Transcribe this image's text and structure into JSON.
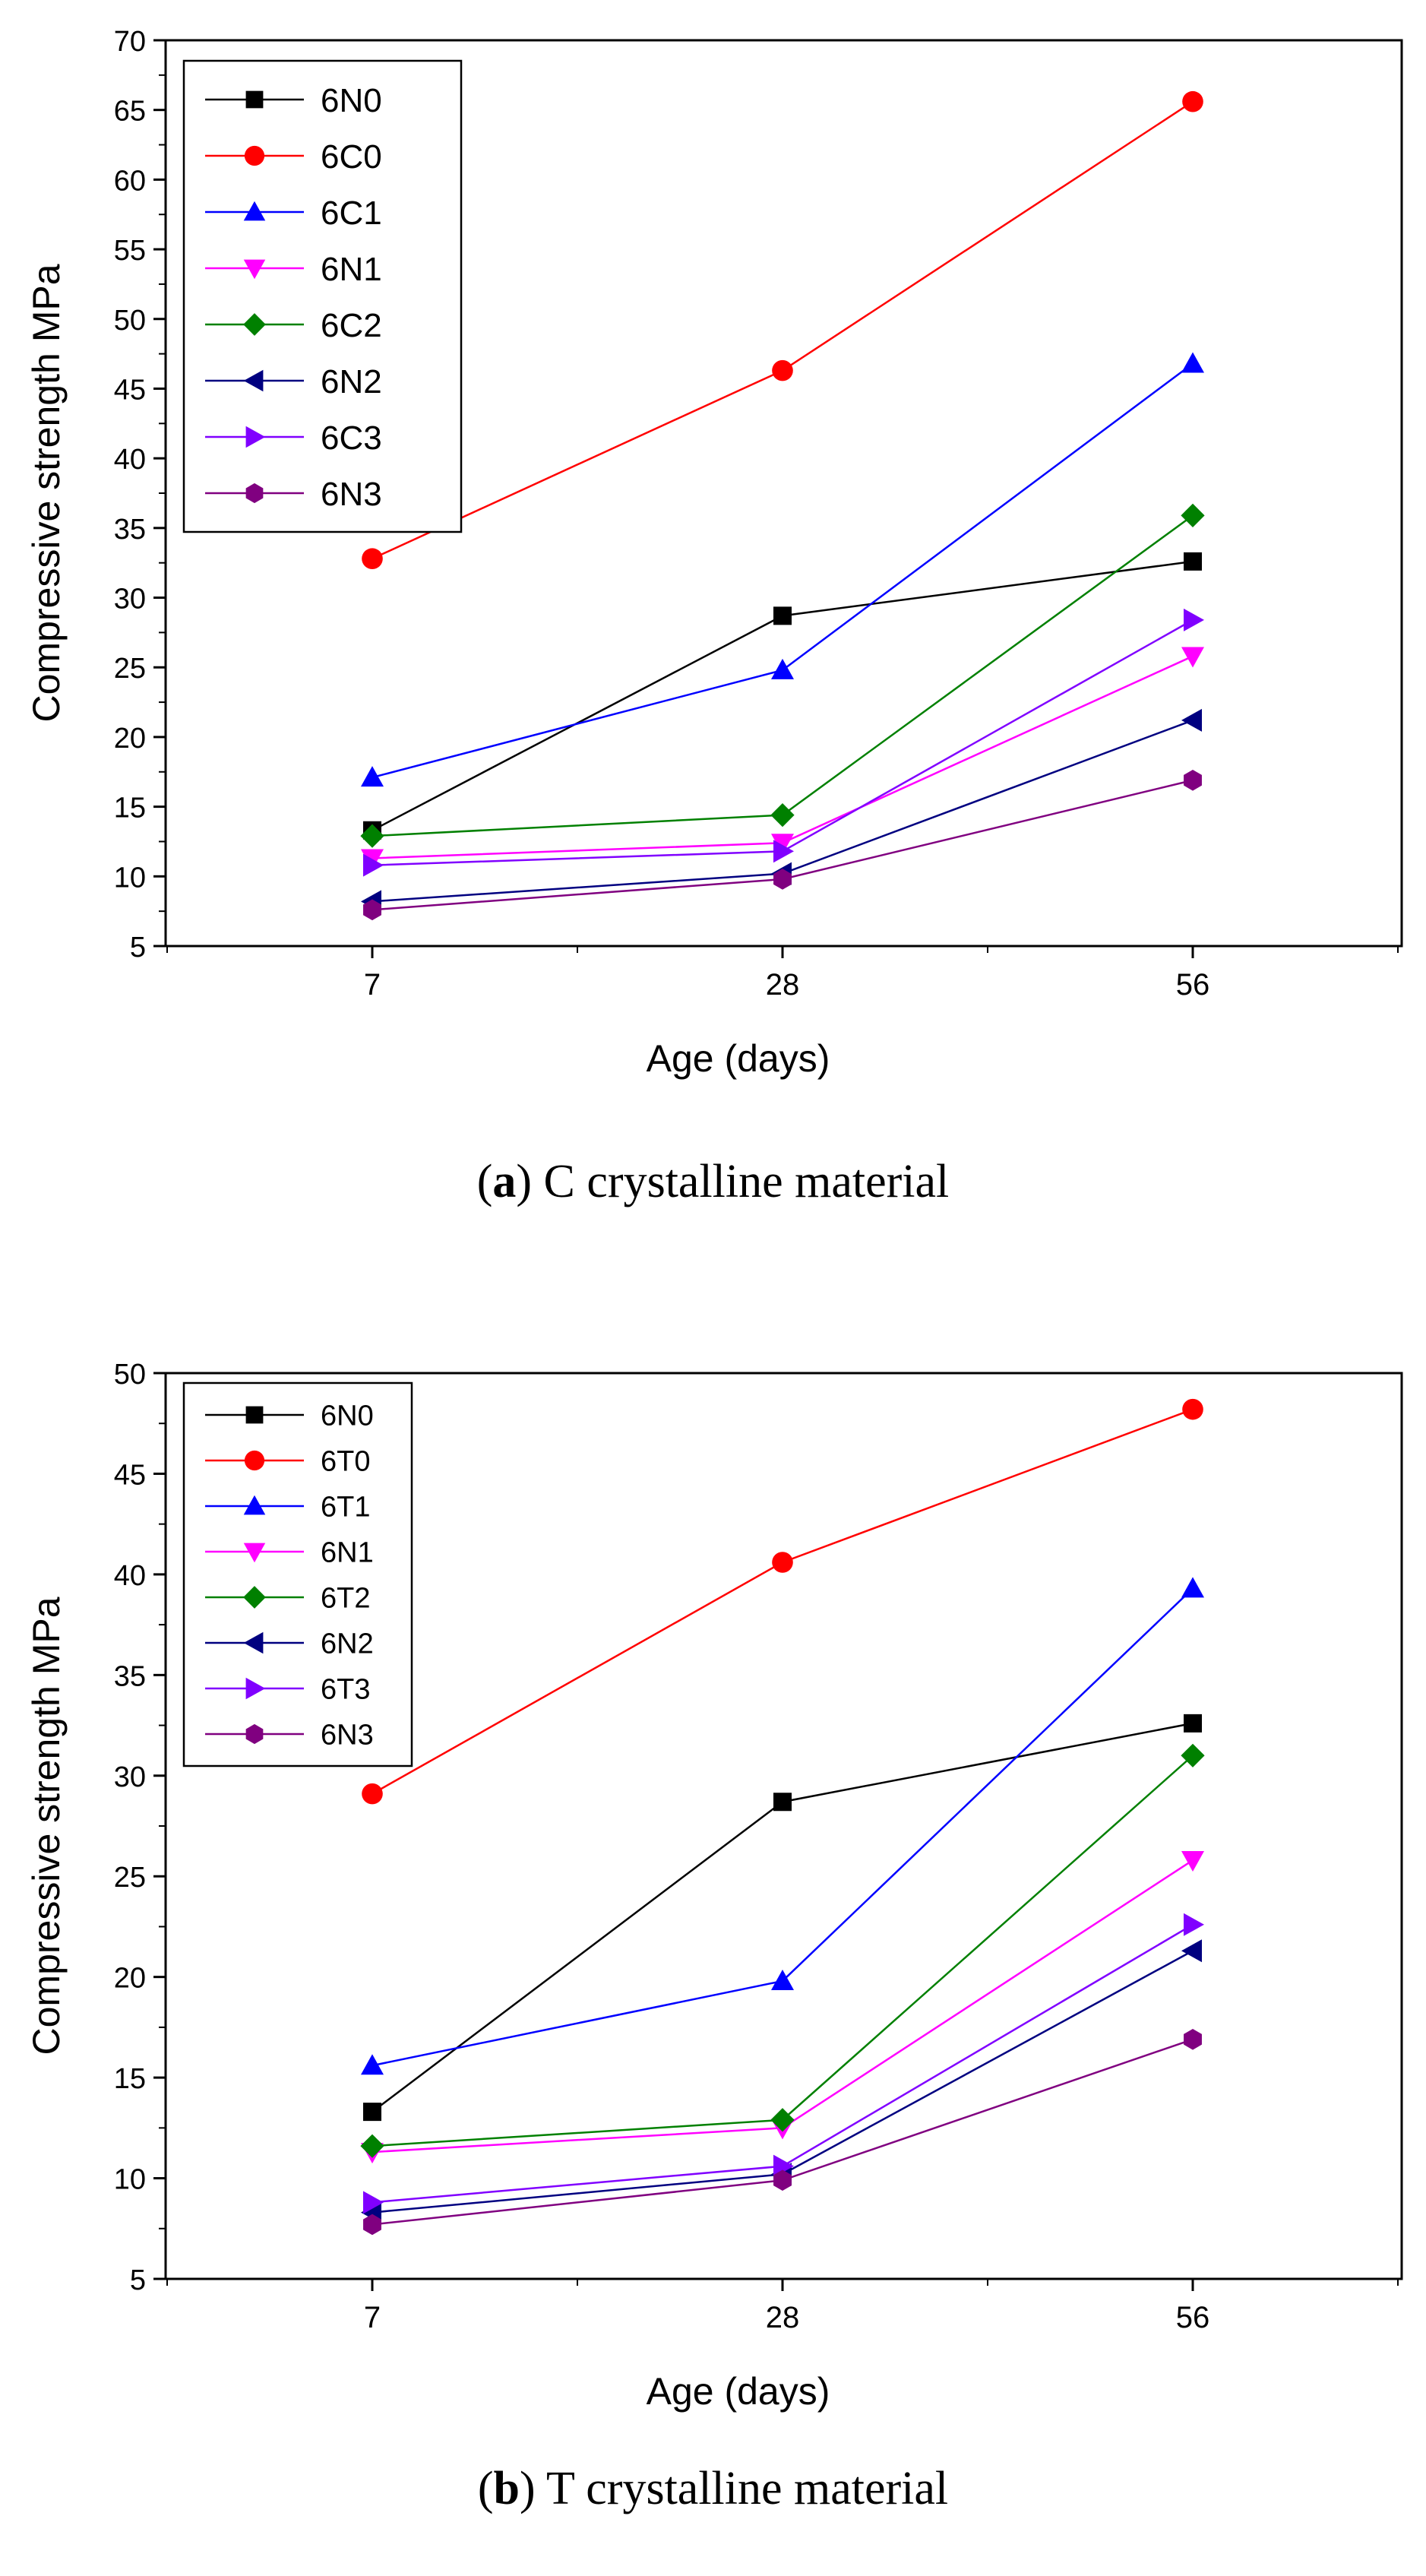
{
  "chart_data": [
    {
      "type": "line",
      "panel_letter": "a",
      "caption": "C crystalline material",
      "xlabel": "Age (days)",
      "ylabel": "Compressive strength   MPa",
      "categories": [
        "7",
        "28",
        "56"
      ],
      "ylim": [
        5,
        70
      ],
      "yticks": [
        5,
        10,
        15,
        20,
        25,
        30,
        35,
        40,
        45,
        50,
        55,
        60,
        65,
        70
      ],
      "legend_position": "top-left",
      "series": [
        {
          "name": "6N0",
          "marker": "square",
          "color": "#000000",
          "values": [
            13.3,
            28.7,
            32.6
          ]
        },
        {
          "name": "6C0",
          "marker": "circle",
          "color": "#ff0000",
          "values": [
            32.8,
            46.3,
            65.6
          ]
        },
        {
          "name": "6C1",
          "marker": "triangle-up",
          "color": "#0000ff",
          "values": [
            17.1,
            24.8,
            46.8
          ]
        },
        {
          "name": "6N1",
          "marker": "triangle-down",
          "color": "#ff00ff",
          "values": [
            11.3,
            12.4,
            25.8
          ]
        },
        {
          "name": "6C2",
          "marker": "diamond",
          "color": "#008000",
          "values": [
            12.9,
            14.4,
            35.9
          ]
        },
        {
          "name": "6N2",
          "marker": "triangle-left",
          "color": "#000080",
          "values": [
            8.2,
            10.2,
            21.2
          ]
        },
        {
          "name": "6C3",
          "marker": "triangle-right",
          "color": "#8000ff",
          "values": [
            10.8,
            11.8,
            28.4
          ]
        },
        {
          "name": "6N3",
          "marker": "hexagon",
          "color": "#800080",
          "values": [
            7.6,
            9.8,
            16.9
          ]
        }
      ]
    },
    {
      "type": "line",
      "panel_letter": "b",
      "caption": "T crystalline material",
      "xlabel": "Age (days)",
      "ylabel": "Compressive strength   MPa",
      "categories": [
        "7",
        "28",
        "56"
      ],
      "ylim": [
        5,
        50
      ],
      "yticks": [
        5,
        10,
        15,
        20,
        25,
        30,
        35,
        40,
        45,
        50
      ],
      "legend_position": "top-left",
      "series": [
        {
          "name": "6N0",
          "marker": "square",
          "color": "#000000",
          "values": [
            13.3,
            28.7,
            32.6
          ]
        },
        {
          "name": "6T0",
          "marker": "circle",
          "color": "#ff0000",
          "values": [
            29.1,
            40.6,
            48.2
          ]
        },
        {
          "name": "6T1",
          "marker": "triangle-up",
          "color": "#0000ff",
          "values": [
            15.6,
            19.8,
            39.3
          ]
        },
        {
          "name": "6N1",
          "marker": "triangle-down",
          "color": "#ff00ff",
          "values": [
            11.3,
            12.5,
            25.8
          ]
        },
        {
          "name": "6T2",
          "marker": "diamond",
          "color": "#008000",
          "values": [
            11.6,
            12.9,
            31.0
          ]
        },
        {
          "name": "6N2",
          "marker": "triangle-left",
          "color": "#000080",
          "values": [
            8.3,
            10.2,
            21.3
          ]
        },
        {
          "name": "6T3",
          "marker": "triangle-right",
          "color": "#8000ff",
          "values": [
            8.8,
            10.6,
            22.6
          ]
        },
        {
          "name": "6N3",
          "marker": "hexagon",
          "color": "#800080",
          "values": [
            7.7,
            9.9,
            16.9
          ]
        }
      ]
    }
  ]
}
